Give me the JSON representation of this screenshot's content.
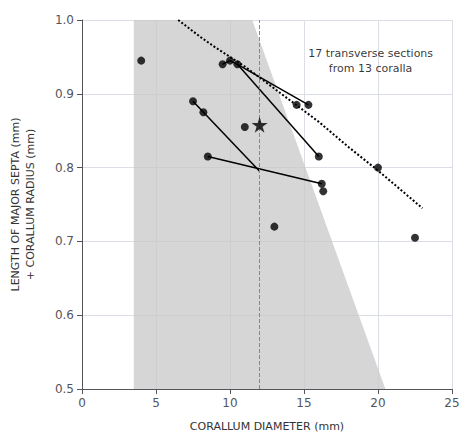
{
  "chart_data": {
    "type": "scatter",
    "xlabel": "CORALLUM DIAMETER (mm)",
    "ylabel": "LENGTH OF MAJOR SEPTA (mm)\n+ CORALLUM RADIUS (mm)",
    "xlim": [
      0,
      25
    ],
    "ylim": [
      0.5,
      1.0
    ],
    "xticks": [
      0,
      5,
      10,
      15,
      20,
      25
    ],
    "yticks": [
      0.5,
      0.6,
      0.7,
      0.8,
      0.9,
      {
        "value": 1.0,
        "label": "1.0"
      }
    ],
    "grid": true,
    "annotations": [
      {
        "text": "17 transverse sections\nfrom 13 coralla",
        "x": 19.5,
        "y": 0.965
      }
    ],
    "series": [
      {
        "type": "area",
        "color": "#c8c8c8",
        "x": [
          3.5,
          11.5,
          20.5,
          3.5
        ],
        "values": [
          1.0,
          1.0,
          0.5,
          0.5
        ]
      },
      {
        "type": "line",
        "line_style": "dotted",
        "color": "#000000",
        "x": [
          6.5,
          8,
          9,
          10,
          11,
          12,
          13,
          14,
          15,
          16,
          17,
          18,
          19,
          20,
          21,
          22,
          23
        ],
        "values": [
          1.0,
          0.977,
          0.963,
          0.95,
          0.937,
          0.922,
          0.907,
          0.892,
          0.877,
          0.862,
          0.845,
          0.828,
          0.812,
          0.796,
          0.779,
          0.762,
          0.745
        ]
      },
      {
        "type": "line",
        "line_style": "solid",
        "color": "#000000",
        "x": [
          9.5,
          10,
          10.5,
          15.3
        ],
        "values": [
          0.94,
          0.945,
          0.94,
          0.885
        ]
      },
      {
        "type": "line",
        "line_style": "solid",
        "color": "#000000",
        "x": [
          10.5,
          16
        ],
        "values": [
          0.94,
          0.815
        ]
      },
      {
        "type": "line",
        "line_style": "solid",
        "color": "#000000",
        "x": [
          7.5,
          12
        ],
        "values": [
          0.89,
          0.795
        ]
      },
      {
        "type": "line",
        "line_style": "solid",
        "color": "#000000",
        "x": [
          8.5,
          16.2
        ],
        "values": [
          0.815,
          0.778
        ]
      },
      {
        "type": "scatter",
        "marker": "circle",
        "color": "#000000",
        "x": [
          4,
          7.5,
          8.2,
          8.5,
          9.5,
          10,
          10.5,
          11,
          13,
          14.5,
          15.3,
          16,
          16.2,
          16.3,
          20,
          22.5
        ],
        "values": [
          0.945,
          0.89,
          0.875,
          0.815,
          0.94,
          0.945,
          0.94,
          0.855,
          0.72,
          0.885,
          0.885,
          0.815,
          0.778,
          0.768,
          0.8,
          0.705
        ]
      },
      {
        "type": "scatter",
        "marker": "star",
        "color": "#000000",
        "x": [
          12.0
        ],
        "values": [
          0.858
        ]
      },
      {
        "type": "vline",
        "line_style": "dashed",
        "color": "#888888",
        "x": [
          12.0
        ]
      }
    ]
  }
}
